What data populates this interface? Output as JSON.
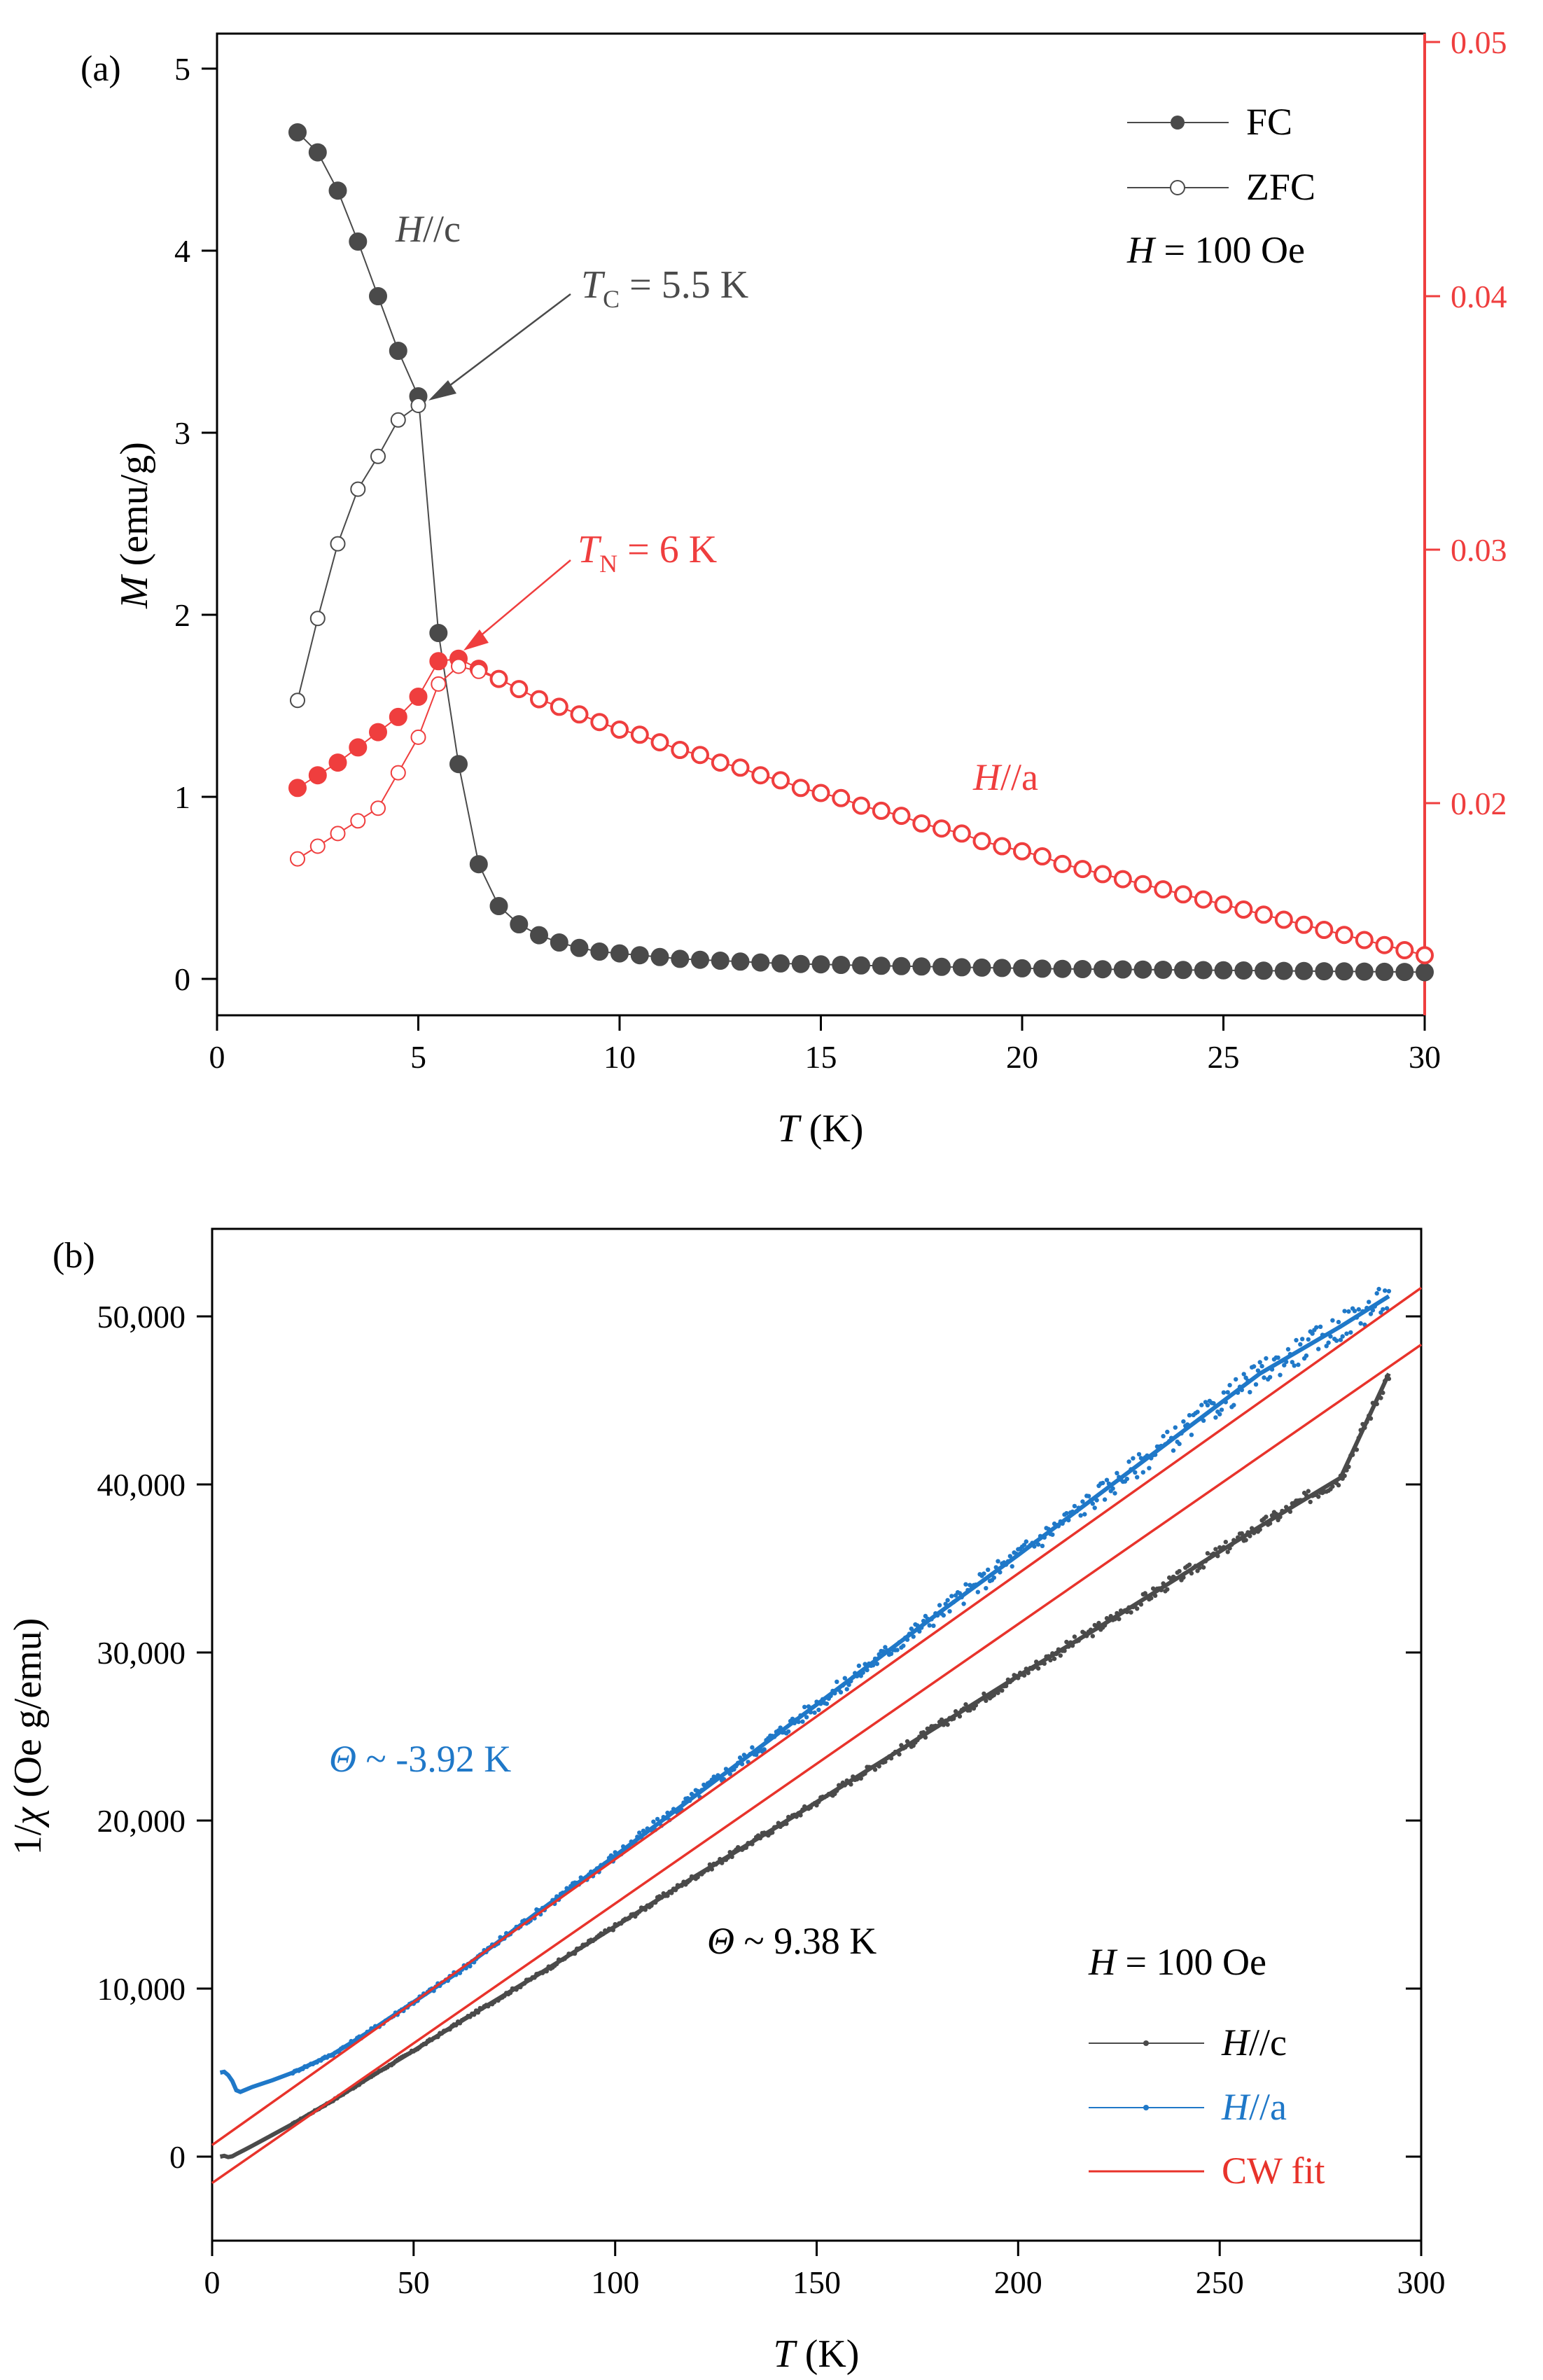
{
  "colors": {
    "black": "#000000",
    "gray": "#4a4a4a",
    "red": "#ef3e3e",
    "blue": "#1f78c8",
    "fit": "#e8332b"
  },
  "chart_data": [
    {
      "panel": "(a)",
      "type": "scatter",
      "xlabel_italic": "T",
      "xlabel_rest": " (K)",
      "ylabel_italic": "M",
      "ylabel_rest": " (emu/g)",
      "xlim": [
        0,
        30
      ],
      "ylim": [
        -0.2,
        5.2
      ],
      "y2lim": [
        0.0125,
        0.05
      ],
      "xticks": [
        "0",
        "5",
        "10",
        "15",
        "20",
        "25",
        "30"
      ],
      "yticks": [
        "0",
        "1",
        "2",
        "3",
        "4",
        "5"
      ],
      "y2ticks": [
        "0.02",
        "0.03",
        "0.04",
        "0.05"
      ],
      "legend": {
        "fc": "FC",
        "zfc": "ZFC",
        "field_italic": "H",
        "field_rest": " = 100 Oe"
      },
      "annotations": {
        "hc_italic": "H",
        "hc_rest": "//c",
        "ha_italic": "H",
        "ha_rest": "//a",
        "tc_italic": "T",
        "tc_sub": "C",
        "tc_rest": " = 5.5 K",
        "tn_italic": "T",
        "tn_sub": "N",
        "tn_rest": " = 6 K"
      },
      "series": [
        {
          "name": "H//c FC",
          "axis": "left",
          "color": "#4a4a4a",
          "filled": true,
          "x": [
            2,
            2.5,
            3,
            3.5,
            4,
            4.5,
            5,
            5.5,
            6,
            6.5,
            7,
            7.5,
            8,
            8.5,
            9,
            9.5,
            10,
            10.5,
            11,
            11.5,
            12,
            12.5,
            13,
            13.5,
            14,
            14.5,
            15,
            15.5,
            16,
            16.5,
            17,
            17.5,
            18,
            18.5,
            19,
            19.5,
            20,
            20.5,
            21,
            21.5,
            22,
            22.5,
            23,
            23.5,
            24,
            24.5,
            25,
            25.5,
            26,
            26.5,
            27,
            27.5,
            28,
            28.5,
            29,
            29.5,
            30
          ],
          "y": [
            4.65,
            4.54,
            4.33,
            4.05,
            3.75,
            3.45,
            3.2,
            1.9,
            1.18,
            0.63,
            0.4,
            0.3,
            0.24,
            0.2,
            0.17,
            0.15,
            0.14,
            0.13,
            0.12,
            0.11,
            0.105,
            0.1,
            0.095,
            0.09,
            0.085,
            0.082,
            0.08,
            0.077,
            0.074,
            0.072,
            0.07,
            0.068,
            0.066,
            0.064,
            0.062,
            0.06,
            0.058,
            0.056,
            0.055,
            0.054,
            0.053,
            0.052,
            0.051,
            0.05,
            0.049,
            0.048,
            0.047,
            0.046,
            0.045,
            0.044,
            0.043,
            0.042,
            0.041,
            0.04,
            0.039,
            0.038,
            0.037
          ]
        },
        {
          "name": "H//c ZFC",
          "axis": "left",
          "color": "#4a4a4a",
          "filled": false,
          "x": [
            2,
            2.5,
            3,
            3.5,
            4,
            4.5,
            5
          ],
          "y": [
            1.53,
            1.98,
            2.39,
            2.69,
            2.87,
            3.07,
            3.15
          ]
        },
        {
          "name": "H//a FC",
          "axis": "right",
          "color": "#ef3e3e",
          "filled": true,
          "x": [
            2,
            2.5,
            3,
            3.5,
            4,
            4.5,
            5,
            5.5,
            6,
            6.5,
            7,
            7.5,
            8,
            8.5,
            9,
            9.5,
            10,
            10.5,
            11,
            11.5,
            12,
            12.5,
            13,
            13.5,
            14,
            14.5,
            15,
            15.5,
            16,
            16.5,
            17,
            17.5,
            18,
            18.5,
            19,
            19.5,
            20,
            20.5,
            21,
            21.5,
            22,
            22.5,
            23,
            23.5,
            24,
            24.5,
            25,
            25.5,
            26,
            26.5,
            27,
            27.5,
            28,
            28.5,
            29,
            29.5,
            30
          ],
          "y": [
            0.0206,
            0.0211,
            0.0216,
            0.0222,
            0.0228,
            0.0234,
            0.0242,
            0.0256,
            0.0257,
            0.0253,
            0.0249,
            0.0245,
            0.0241,
            0.0238,
            0.0235,
            0.0232,
            0.0229,
            0.0227,
            0.0224,
            0.0221,
            0.0219,
            0.0216,
            0.0214,
            0.0211,
            0.0209,
            0.0206,
            0.0204,
            0.0202,
            0.0199,
            0.0197,
            0.0195,
            0.0192,
            0.019,
            0.0188,
            0.0185,
            0.0183,
            0.0181,
            0.0179,
            0.0176,
            0.0174,
            0.0172,
            0.017,
            0.0168,
            0.0166,
            0.0164,
            0.0162,
            0.016,
            0.0158,
            0.0156,
            0.0154,
            0.0152,
            0.015,
            0.0148,
            0.0146,
            0.0144,
            0.0142,
            0.014
          ]
        },
        {
          "name": "H//a ZFC",
          "axis": "right",
          "color": "#ef3e3e",
          "filled": false,
          "x": [
            2,
            2.5,
            3,
            3.5,
            4,
            4.5,
            5,
            5.5,
            6,
            6.5,
            7,
            7.5,
            8,
            8.5,
            9,
            9.5,
            10,
            10.5,
            11,
            11.5,
            12,
            12.5,
            13,
            13.5,
            14,
            14.5,
            15,
            15.5,
            16,
            16.5,
            17,
            17.5,
            18,
            18.5,
            19,
            19.5,
            20,
            20.5,
            21,
            21.5,
            22,
            22.5,
            23,
            23.5,
            24,
            24.5,
            25,
            25.5,
            26,
            26.5,
            27,
            27.5,
            28,
            28.5,
            29,
            29.5,
            30
          ],
          "y": [
            0.0178,
            0.0183,
            0.0188,
            0.0193,
            0.0198,
            0.0212,
            0.0226,
            0.0247,
            0.0254,
            0.0252,
            0.0249,
            0.0245,
            0.0241,
            0.0238,
            0.0235,
            0.0232,
            0.0229,
            0.0227,
            0.0224,
            0.0221,
            0.0219,
            0.0216,
            0.0214,
            0.0211,
            0.0209,
            0.0206,
            0.0204,
            0.0202,
            0.0199,
            0.0197,
            0.0195,
            0.0192,
            0.019,
            0.0188,
            0.0185,
            0.0183,
            0.0181,
            0.0179,
            0.0176,
            0.0174,
            0.0172,
            0.017,
            0.0168,
            0.0166,
            0.0164,
            0.0162,
            0.016,
            0.0158,
            0.0156,
            0.0154,
            0.0152,
            0.015,
            0.0148,
            0.0146,
            0.0144,
            0.0142,
            0.014
          ]
        }
      ]
    },
    {
      "panel": "(b)",
      "type": "line",
      "xlabel_italic": "T",
      "xlabel_rest": " (K)",
      "ylabel_italic": "χ",
      "ylabel_pre": "1/",
      "ylabel_rest": " (Oe g/emu)",
      "xlim": [
        0,
        300
      ],
      "ylim": [
        -5000,
        55000
      ],
      "xticks": [
        "0",
        "50",
        "100",
        "150",
        "200",
        "250",
        "300"
      ],
      "yticks": [
        "0",
        "10,000",
        "20,000",
        "30,000",
        "40,000",
        "50,000"
      ],
      "legend": {
        "field_italic": "H",
        "field_rest": " = 100 Oe",
        "hc_italic": "H",
        "hc_rest": "//c",
        "ha_italic": "H",
        "ha_rest": "//a",
        "fit": "CW fit"
      },
      "annotations": {
        "theta_a_italic": "Θ",
        "theta_a_rest": " ~ -3.92 K",
        "theta_c_italic": "Θ",
        "theta_c_rest": " ~ 9.38 K"
      },
      "series": [
        {
          "name": "H//c",
          "color": "#4a4a4a",
          "x": [
            2,
            3,
            4,
            5,
            6,
            8,
            10,
            15,
            20,
            30,
            40,
            50,
            60,
            80,
            100,
            120,
            140,
            160,
            180,
            200,
            220,
            240,
            260,
            280,
            292
          ],
          "y": [
            0,
            50,
            -30,
            20,
            150,
            400,
            650,
            1300,
            1950,
            3350,
            4850,
            6300,
            7800,
            10700,
            13700,
            16700,
            19600,
            22600,
            25600,
            28600,
            31500,
            34500,
            37500,
            40400,
            46600
          ]
        },
        {
          "name": "H//a",
          "color": "#1f78c8",
          "x": [
            2,
            3,
            4,
            5,
            6,
            7,
            8,
            10,
            15,
            20,
            30,
            40,
            50,
            60,
            80,
            100,
            120,
            140,
            160,
            180,
            200,
            220,
            240,
            260,
            280,
            292
          ],
          "y": [
            5000,
            5050,
            4850,
            4500,
            3950,
            3850,
            3950,
            4150,
            4550,
            5000,
            6100,
            7600,
            9200,
            10800,
            14400,
            17900,
            21500,
            25100,
            28700,
            32300,
            35800,
            39400,
            43000,
            46600,
            49400,
            51200
          ]
        },
        {
          "name": "CW fit H//c",
          "color": "#e8332b",
          "x": [
            0,
            300
          ],
          "y": [
            -1570,
            48320
          ]
        },
        {
          "name": "CW fit H//a",
          "color": "#e8332b",
          "x": [
            0,
            300
          ],
          "y": [
            690,
            51700
          ]
        }
      ]
    }
  ]
}
